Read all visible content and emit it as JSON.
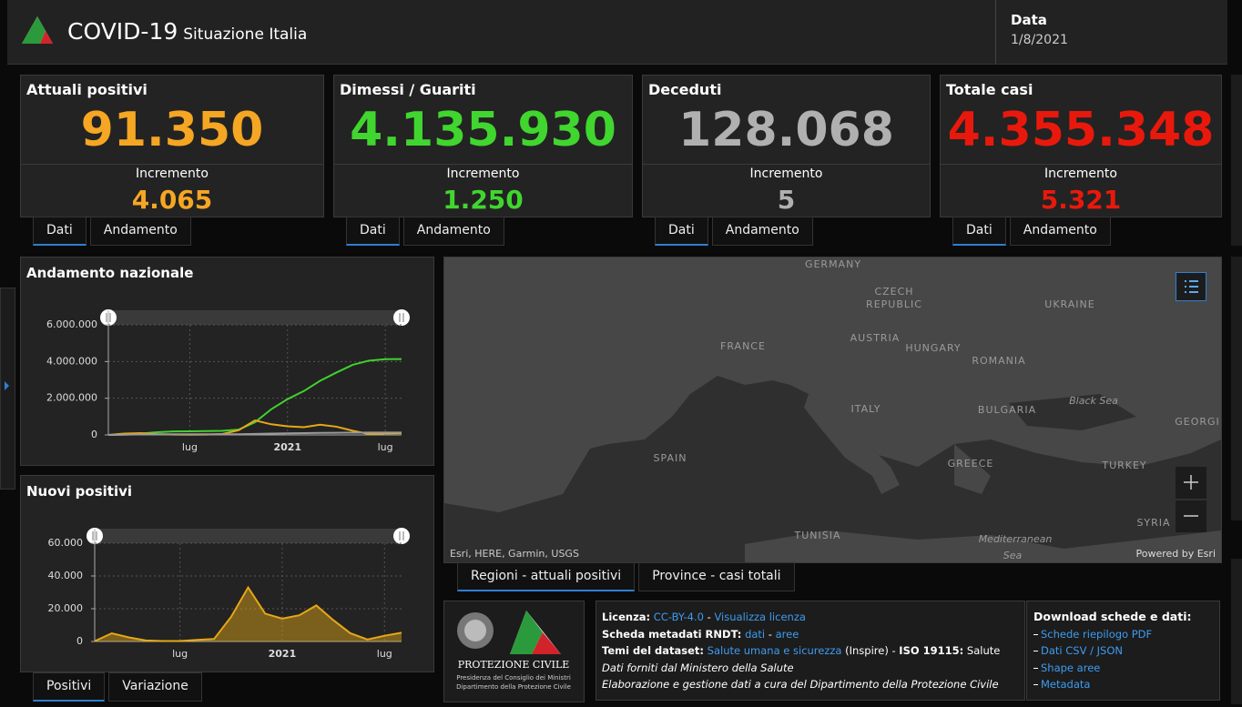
{
  "header": {
    "title": "COVID-19",
    "subtitle": "Situazione Italia",
    "date_label": "Data",
    "date": "1/8/2021"
  },
  "cards": [
    {
      "title": "Attuali positivi",
      "value": "91.350",
      "increment_label": "Incremento",
      "increment": "4.065",
      "tabs": [
        "Dati",
        "Andamento"
      ]
    },
    {
      "title": "Dimessi / Guariti",
      "value": "4.135.930",
      "increment_label": "Incremento",
      "increment": "1.250",
      "tabs": [
        "Dati",
        "Andamento"
      ]
    },
    {
      "title": "Deceduti",
      "value": "128.068",
      "increment_label": "Incremento",
      "increment": "5",
      "tabs": [
        "Dati",
        "Andamento"
      ]
    },
    {
      "title": "Totale casi",
      "value": "4.355.348",
      "increment_label": "Incremento",
      "increment": "5.321",
      "tabs": [
        "Dati",
        "Andamento"
      ]
    }
  ],
  "chart_data": [
    {
      "type": "line",
      "title": "Andamento nazionale",
      "categories": [
        null,
        null,
        null,
        null,
        null,
        "lug",
        null,
        null,
        null,
        null,
        null,
        "2021",
        null,
        null,
        null,
        null,
        null,
        "lug",
        null
      ],
      "series": [
        {
          "color": "#3fd12f",
          "values": [
            0,
            16000,
            75000,
            150000,
            190000,
            200000,
            210000,
            225000,
            290000,
            690000,
            1400000,
            1950000,
            2390000,
            2950000,
            3400000,
            3820000,
            4050000,
            4130000,
            4135930
          ]
        },
        {
          "color": "#e6a817",
          "values": [
            1000,
            75000,
            100000,
            42000,
            17000,
            12000,
            20000,
            50000,
            255000,
            790000,
            580000,
            470000,
            420000,
            560000,
            450000,
            230000,
            50000,
            80000,
            91350
          ]
        },
        {
          "color": "#9a9a9a",
          "values": [
            30,
            12400,
            27900,
            33300,
            34700,
            35100,
            35400,
            35900,
            38600,
            55600,
            74100,
            88500,
            97700,
            109300,
            120800,
            126000,
            127600,
            128000,
            128068
          ]
        }
      ],
      "ylim": [
        0,
        6000000
      ],
      "yticks": [
        0,
        {
          "value": 2000000,
          "label": "2.000.000"
        },
        {
          "value": 4000000,
          "label": "4.000.000"
        },
        {
          "value": 6000000,
          "label": "6.000.000"
        }
      ],
      "grid": true
    },
    {
      "type": "area",
      "title": "Nuovi positivi",
      "categories": [
        null,
        null,
        null,
        null,
        null,
        "lug",
        null,
        null,
        null,
        null,
        null,
        "2021",
        null,
        null,
        null,
        null,
        null,
        "lug",
        null
      ],
      "series": [
        {
          "color": "#e6a817",
          "values": [
            200,
            5000,
            2500,
            600,
            250,
            250,
            1000,
            1500,
            15000,
            33000,
            17000,
            14000,
            16000,
            22000,
            13000,
            5000,
            1200,
            3500,
            5321
          ]
        }
      ],
      "ylim": [
        0,
        60000
      ],
      "yticks": [
        0,
        {
          "value": 20000,
          "label": "20.000"
        },
        {
          "value": 40000,
          "label": "40.000"
        },
        {
          "value": 60000,
          "label": "60.000"
        }
      ],
      "grid": true
    }
  ],
  "chart_tabs": [
    [
      "Dati"
    ],
    [
      "Positivi",
      "Variazione"
    ]
  ],
  "map": {
    "labels": [
      "GERMANY",
      "CZECH",
      "REPUBLIC",
      "UKRAINE",
      "FRANCE",
      "AUSTRIA",
      "HUNGARY",
      "ROMANIA",
      "ITALY",
      "BULGARIA",
      "Black Sea",
      "GEORGI",
      "SPAIN",
      "GREECE",
      "TURKEY",
      "TUNISIA",
      "SYRIA",
      "Mediterranean",
      "Sea"
    ],
    "attribution": "Esri, HERE, Garmin, USGS",
    "powered": "Powered by Esri",
    "tabs": [
      "Regioni - attuali positivi",
      "Province - casi totali"
    ]
  },
  "logo": {
    "name": "PROTEZIONE CIVILE",
    "line1": "Presidenza del Consiglio dei Ministri",
    "line2": "Dipartimento della Protezione Civile"
  },
  "info": [
    [
      {
        "label": "Licenza:"
      },
      {
        "text": " "
      },
      {
        "link": "CC-BY-4.0"
      },
      {
        "text": " - "
      },
      {
        "link": "Visualizza licenza"
      }
    ],
    [
      {
        "label": "Scheda metadati RNDT:"
      },
      {
        "text": " "
      },
      {
        "link": "dati"
      },
      {
        "text": " - "
      },
      {
        "link": "aree"
      }
    ],
    [
      {
        "label": "Temi del dataset:"
      },
      {
        "text": " "
      },
      {
        "link": "Salute umana e sicurezza"
      },
      {
        "text": " (Inspire) - "
      },
      {
        "label": "ISO 19115:"
      },
      {
        "text": " Salute"
      }
    ],
    [
      {
        "note": "Dati forniti dal Ministero della Salute"
      }
    ],
    [
      {
        "note": "Elaborazione e gestione dati a cura del Dipartimento della Protezione Civile"
      }
    ]
  ],
  "download": {
    "title": "Download schede e dati:",
    "links": [
      "Schede riepilogo PDF",
      "Dati CSV / JSON",
      "Shape aree",
      "Metadata"
    ]
  }
}
